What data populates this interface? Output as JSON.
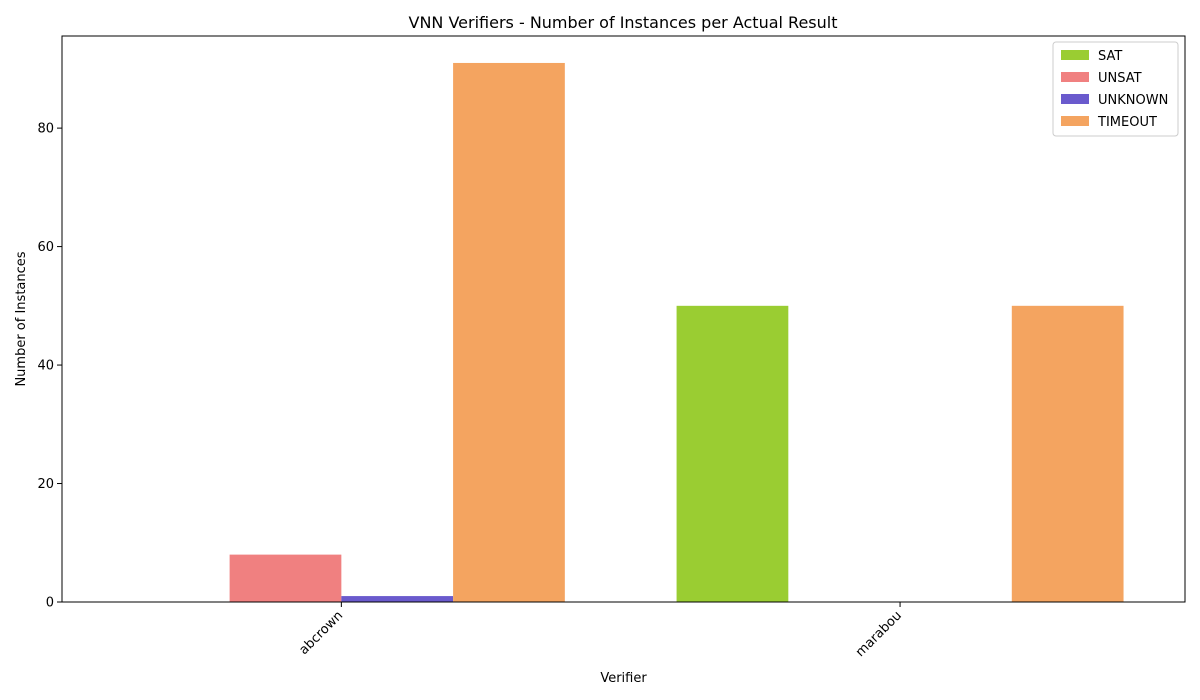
{
  "chart_data": {
    "type": "bar",
    "title": "VNN Verifiers - Number of Instances per Actual Result",
    "xlabel": "Verifier",
    "ylabel": "Number of Instances",
    "categories": [
      "abcrown",
      "marabou"
    ],
    "series": [
      {
        "name": "SAT",
        "color": "#9acd32",
        "values": [
          0,
          50
        ]
      },
      {
        "name": "UNSAT",
        "color": "#f08080",
        "values": [
          8,
          0
        ]
      },
      {
        "name": "UNKNOWN",
        "color": "#6a5acd",
        "values": [
          1,
          0
        ]
      },
      {
        "name": "TIMEOUT",
        "color": "#f4a460",
        "values": [
          91,
          50
        ]
      }
    ],
    "ylim": [
      0,
      95.55
    ],
    "yticks": [
      0,
      20,
      40,
      60,
      80
    ],
    "grid": false,
    "legend_position": "top-right"
  }
}
